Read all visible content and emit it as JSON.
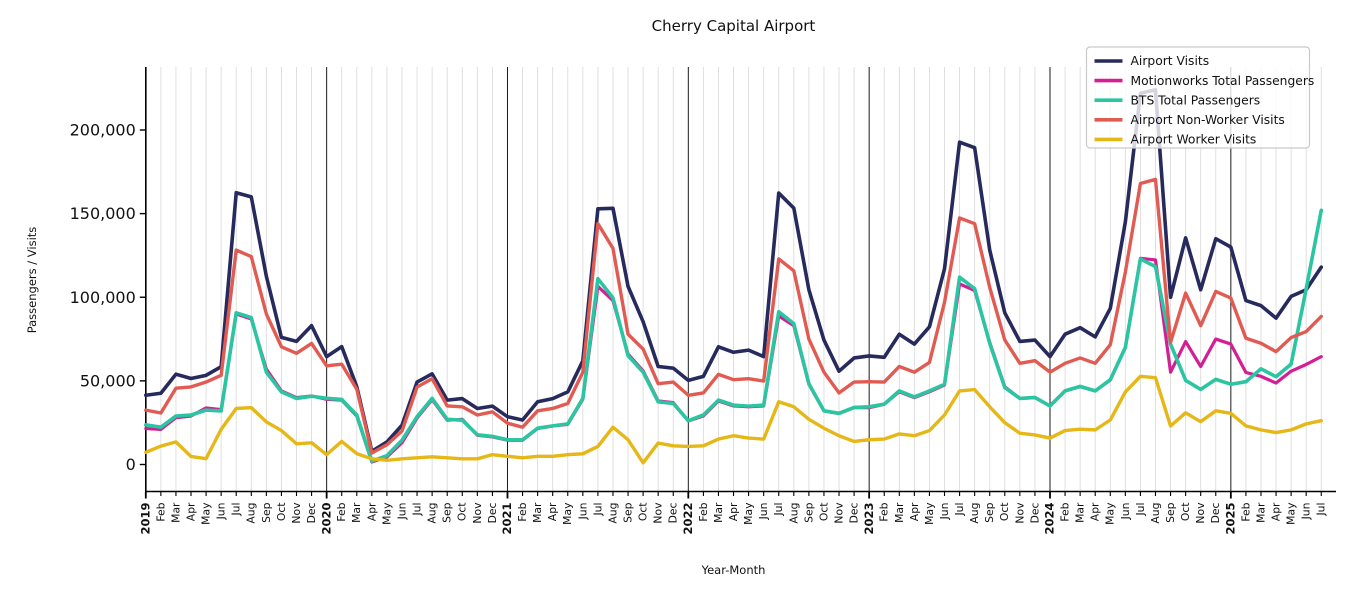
{
  "chart": {
    "title": "Cherry Capital Airport",
    "xlabel": "Year-Month",
    "ylabel": "Passengers / Visits"
  },
  "chart_data": {
    "type": "line",
    "title": "Cherry Capital Airport",
    "xlabel": "Year-Month",
    "ylabel": "Passengers / Visits",
    "ylim": [
      -16500,
      235000
    ],
    "grid": "vertical-monthly",
    "year_separator_lines": [
      "2020",
      "2021",
      "2022",
      "2023",
      "2024",
      "2025"
    ],
    "legend_position": "upper right",
    "y_ticks": [
      0,
      50000,
      100000,
      150000,
      200000
    ],
    "y_tick_labels": [
      "0",
      "50,000",
      "100,000",
      "150,000",
      "200,000"
    ],
    "x_tick_labels": [
      "2019",
      "Feb",
      "Mar",
      "Apr",
      "May",
      "Jun",
      "Jul",
      "Aug",
      "Sep",
      "Oct",
      "Nov",
      "Dec",
      "2020",
      "Feb",
      "Mar",
      "Apr",
      "May",
      "Jun",
      "Jul",
      "Aug",
      "Sep",
      "Oct",
      "Nov",
      "Dec",
      "2021",
      "Feb",
      "Mar",
      "Apr",
      "May",
      "Jun",
      "Jul",
      "Aug",
      "Sep",
      "Oct",
      "Nov",
      "Dec",
      "2022",
      "Feb",
      "Mar",
      "Apr",
      "May",
      "Jun",
      "Jul",
      "Aug",
      "Sep",
      "Oct",
      "Nov",
      "Dec",
      "2023",
      "Feb",
      "Mar",
      "Apr",
      "May",
      "Jun",
      "Jul",
      "Aug",
      "Sep",
      "Oct",
      "Nov",
      "Dec",
      "2024",
      "Feb",
      "Mar",
      "Apr",
      "May",
      "Jun",
      "Jul",
      "Aug",
      "Sep",
      "Oct",
      "Nov",
      "Dec",
      "2025",
      "Feb",
      "Mar",
      "Apr",
      "May",
      "Jun",
      "Jul"
    ],
    "series": [
      {
        "name": "Airport Visits",
        "color": "#272a5c",
        "line_width": 3.6,
        "values": [
          41400,
          42600,
          54000,
          51400,
          53300,
          58500,
          162500,
          160000,
          112500,
          76000,
          73600,
          83000,
          64500,
          70500,
          46500,
          7900,
          13500,
          23500,
          49300,
          54200,
          38500,
          39400,
          33500,
          34900,
          28600,
          26600,
          37500,
          39400,
          43400,
          62000,
          152900,
          153200,
          106500,
          85400,
          58600,
          57600,
          50300,
          52700,
          70400,
          67100,
          68400,
          64500,
          162300,
          153300,
          104500,
          74400,
          55800,
          63700,
          64900,
          64100,
          77900,
          72000,
          82300,
          117000,
          192700,
          189400,
          128200,
          90700,
          73600,
          74400,
          64500,
          77900,
          81800,
          76300,
          93300,
          145000,
          222000,
          224000,
          100000,
          135500,
          104500,
          135000,
          130000,
          98000,
          95000,
          87500,
          100500,
          104500,
          118000
        ]
      },
      {
        "name": "Motionworks Total Passengers",
        "color": "#d21f96",
        "line_width": 3.2,
        "values": [
          21500,
          21000,
          28000,
          29000,
          33800,
          32800,
          90000,
          87000,
          57000,
          44000,
          40000,
          41000,
          39000,
          38500,
          29000,
          1500,
          4500,
          13000,
          27800,
          38800,
          26500,
          27000,
          17500,
          16500,
          14500,
          14500,
          21500,
          23000,
          24000,
          39000,
          106500,
          98000,
          66000,
          56000,
          38000,
          37000,
          26000,
          29000,
          38000,
          35000,
          34500,
          35000,
          88800,
          83000,
          48000,
          32000,
          30500,
          34000,
          34000,
          36000,
          43500,
          40000,
          43500,
          47500,
          108000,
          104000,
          73000,
          46500,
          39500,
          40000,
          35000,
          44000,
          46500,
          44000,
          50500,
          70000,
          123300,
          122300,
          55200,
          73500,
          58600,
          75000,
          72000,
          55000,
          52700,
          48700,
          55800,
          59800,
          64500
        ]
      },
      {
        "name": "BTS Total Passengers",
        "color": "#2cc5a2",
        "line_width": 3.6,
        "values": [
          23700,
          22300,
          29000,
          29600,
          32500,
          32000,
          90700,
          87800,
          55200,
          43400,
          39500,
          40800,
          39600,
          38900,
          29600,
          2000,
          5300,
          14500,
          28600,
          39500,
          27000,
          26500,
          17800,
          16800,
          14800,
          14800,
          21700,
          23100,
          24300,
          39500,
          111100,
          99600,
          65100,
          55200,
          37500,
          36500,
          26200,
          29600,
          38500,
          35500,
          34900,
          35500,
          91300,
          84200,
          48300,
          32100,
          30600,
          34100,
          34500,
          36100,
          44000,
          40400,
          44000,
          48000,
          112000,
          105100,
          72400,
          46000,
          39500,
          40100,
          35000,
          44000,
          46700,
          44000,
          50700,
          70000,
          122900,
          118300,
          72000,
          50300,
          44900,
          50900,
          48000,
          49500,
          57200,
          52500,
          60000,
          105000,
          152000
        ]
      },
      {
        "name": "Airport Non-Worker Visits",
        "color": "#e15b52",
        "line_width": 3.4,
        "values": [
          32500,
          30800,
          45600,
          46400,
          49300,
          53300,
          128200,
          124300,
          90000,
          70400,
          66500,
          72400,
          59000,
          60000,
          45000,
          6900,
          11800,
          20000,
          46300,
          51300,
          35000,
          34500,
          29600,
          31500,
          24700,
          22300,
          32100,
          33500,
          36500,
          55200,
          144000,
          129200,
          77900,
          69000,
          48300,
          49300,
          41400,
          42800,
          53900,
          50700,
          51300,
          49900,
          122900,
          115800,
          75000,
          55200,
          42800,
          49300,
          49500,
          49300,
          58600,
          55200,
          61000,
          97000,
          147400,
          144000,
          105900,
          74400,
          60500,
          62100,
          55200,
          60500,
          63700,
          60500,
          71600,
          115000,
          168000,
          170500,
          73000,
          102500,
          83000,
          103500,
          99500,
          75500,
          72500,
          67500,
          75900,
          79500,
          88500
        ]
      },
      {
        "name": "Airport Worker Visits",
        "color": "#e5b717",
        "line_width": 3.4,
        "values": [
          7300,
          11000,
          13500,
          4800,
          3500,
          21000,
          33500,
          34000,
          25500,
          20300,
          12400,
          13000,
          5900,
          13800,
          6500,
          3400,
          2500,
          3400,
          4000,
          4600,
          4000,
          3400,
          3400,
          5900,
          4900,
          4000,
          4900,
          4900,
          5900,
          6400,
          10800,
          22300,
          14800,
          1000,
          12800,
          11200,
          10800,
          11200,
          15200,
          17200,
          15800,
          15200,
          37500,
          34500,
          27000,
          21700,
          17200,
          13800,
          14800,
          15200,
          18300,
          17200,
          20300,
          29600,
          44000,
          44800,
          34500,
          25000,
          18700,
          17700,
          15800,
          20300,
          21100,
          20700,
          26600,
          43400,
          52700,
          51900,
          23000,
          30900,
          25600,
          32100,
          30600,
          23100,
          20700,
          19100,
          20700,
          24300,
          26200
        ]
      }
    ]
  },
  "style": {
    "gridline_color": "#dcdcdc",
    "year_line_color": "#1a1a1a",
    "spine_color": "#000000",
    "legend_border_color": "#c9c9c9",
    "legend_bg_opacity": "0.8"
  }
}
